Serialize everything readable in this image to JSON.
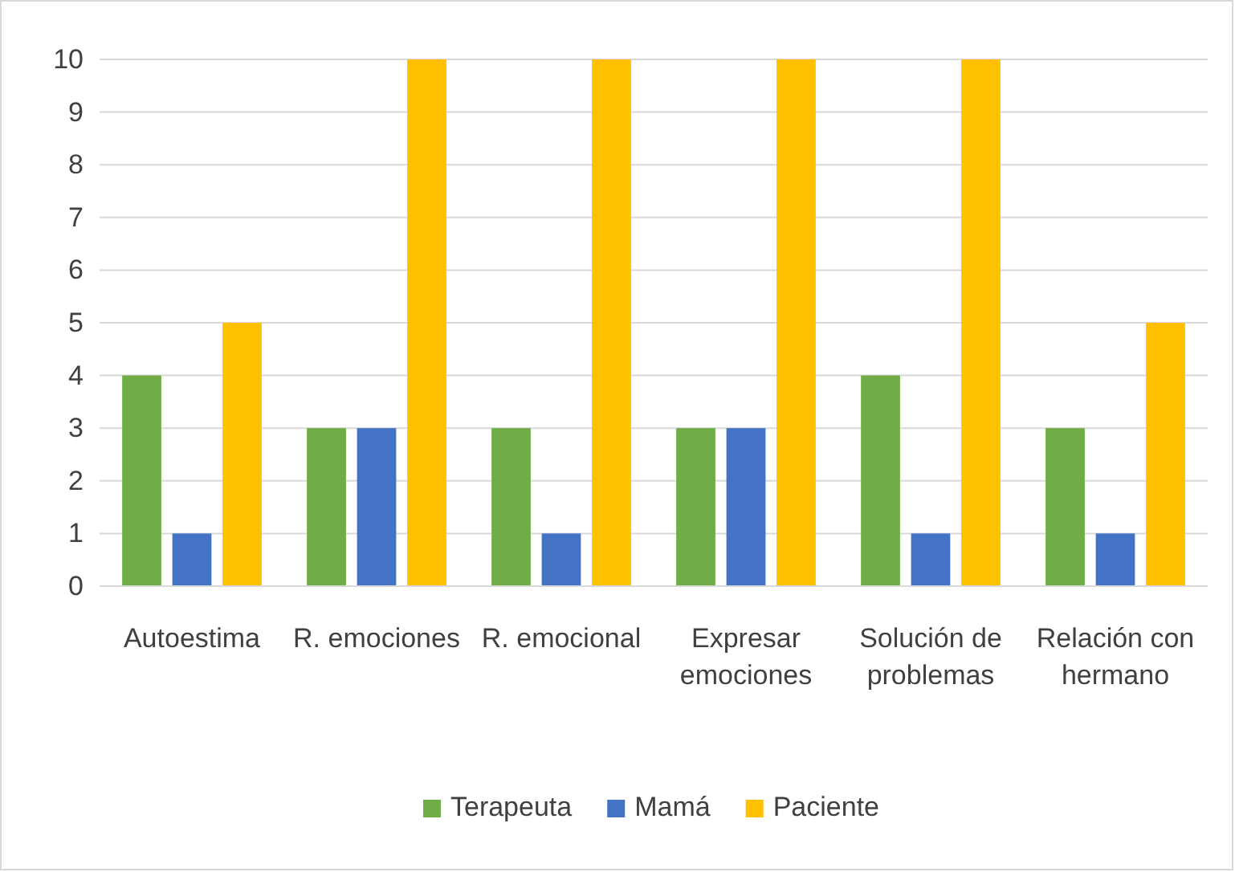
{
  "chart_data": {
    "type": "bar",
    "categories": [
      "Autoestima",
      "R. emociones",
      "R. emocional",
      "Expresar emociones",
      "Solución de problemas",
      "Relación con hermano"
    ],
    "series": [
      {
        "name": "Terapeuta",
        "color": "#70ad47",
        "values": [
          4,
          3,
          3,
          3,
          4,
          3
        ]
      },
      {
        "name": "Mamá",
        "color": "#4472c4",
        "values": [
          1,
          3,
          1,
          3,
          1,
          1
        ]
      },
      {
        "name": "Paciente",
        "color": "#ffc000",
        "values": [
          5,
          10,
          10,
          10,
          10,
          5
        ]
      }
    ],
    "ylim": [
      0,
      10
    ],
    "yticks": [
      0,
      1,
      2,
      3,
      4,
      5,
      6,
      7,
      8,
      9,
      10
    ],
    "grid": "y",
    "legend": "bottom"
  }
}
